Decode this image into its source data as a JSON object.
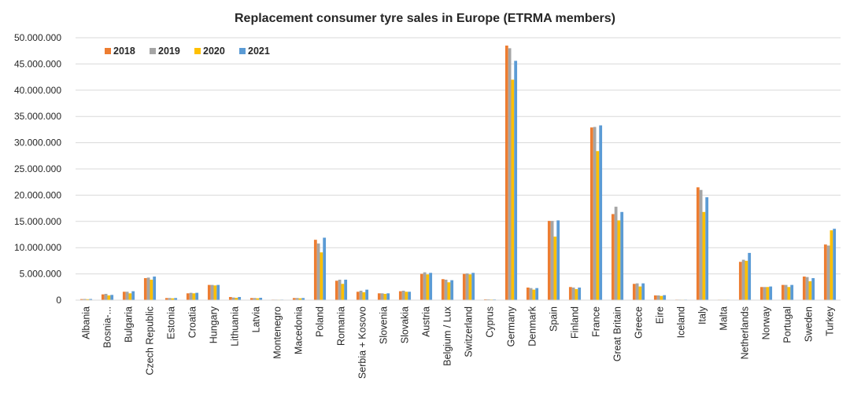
{
  "chart_data": {
    "type": "bar",
    "title": "Replacement consumer tyre sales in Europe (ETRMA members)",
    "xlabel": "",
    "ylabel": "",
    "ylim": [
      0,
      50000000
    ],
    "ytick_step": 5000000,
    "ytick_labels": [
      "0",
      "5.000.000",
      "10.000.000",
      "15.000.000",
      "20.000.000",
      "25.000.000",
      "30.000.000",
      "35.000.000",
      "40.000.000",
      "45.000.000",
      "50.000.000"
    ],
    "grid": true,
    "legend_position": "top-left",
    "categories": [
      "Albania",
      "Bosnia-...",
      "Bulgaria",
      "Czech Republic",
      "Estonia",
      "Croatia",
      "Hungary",
      "Lithuania",
      "Latvia",
      "Montenegro",
      "Macedonia",
      "Poland",
      "Romania",
      "Serbia + Kosovo",
      "Slovenia",
      "Slovakia",
      "Austria",
      "Belgium / Lux",
      "Switzerland",
      "Cyprus",
      "Germany",
      "Denmark",
      "Spain",
      "Finland",
      "France",
      "Great Britain",
      "Greece",
      "Eire",
      "Iceland",
      "Italy",
      "Malta",
      "Netherlands",
      "Norway",
      "Portugal",
      "Sweden",
      "Turkey"
    ],
    "series": [
      {
        "name": "2018",
        "color": "#ED7D31",
        "values": [
          200000,
          1100000,
          1600000,
          4200000,
          400000,
          1300000,
          2900000,
          600000,
          400000,
          100000,
          400000,
          11500000,
          3700000,
          1600000,
          1300000,
          1700000,
          5000000,
          4000000,
          5000000,
          150000,
          48500000,
          2400000,
          15100000,
          2500000,
          32900000,
          16400000,
          3100000,
          900000,
          100000,
          21500000,
          30000,
          7300000,
          2500000,
          2900000,
          4500000,
          10600000
        ]
      },
      {
        "name": "2019",
        "color": "#A5A5A5",
        "values": [
          220000,
          1200000,
          1600000,
          4300000,
          400000,
          1400000,
          2900000,
          500000,
          400000,
          100000,
          400000,
          10800000,
          3900000,
          1800000,
          1300000,
          1800000,
          5300000,
          3900000,
          5100000,
          150000,
          48000000,
          2300000,
          15100000,
          2400000,
          33000000,
          17800000,
          3200000,
          900000,
          100000,
          21000000,
          30000,
          7700000,
          2500000,
          2900000,
          4400000,
          10400000
        ]
      },
      {
        "name": "2020",
        "color": "#FFC000",
        "values": [
          180000,
          900000,
          1300000,
          3900000,
          350000,
          1300000,
          2800000,
          450000,
          350000,
          90000,
          350000,
          9100000,
          3100000,
          1500000,
          1200000,
          1600000,
          4900000,
          3400000,
          4900000,
          120000,
          42000000,
          2000000,
          12100000,
          2100000,
          28400000,
          15200000,
          2600000,
          800000,
          80000,
          16800000,
          25000,
          7500000,
          2500000,
          2500000,
          3600000,
          13300000
        ]
      },
      {
        "name": "2021",
        "color": "#5B9BD5",
        "values": [
          220000,
          1000000,
          1700000,
          4500000,
          400000,
          1400000,
          2900000,
          600000,
          450000,
          100000,
          400000,
          11900000,
          3900000,
          2000000,
          1300000,
          1600000,
          5200000,
          3800000,
          5200000,
          130000,
          45600000,
          2300000,
          15200000,
          2400000,
          33300000,
          16800000,
          3200000,
          950000,
          100000,
          19600000,
          30000,
          9000000,
          2600000,
          2900000,
          4200000,
          13600000
        ]
      }
    ]
  }
}
